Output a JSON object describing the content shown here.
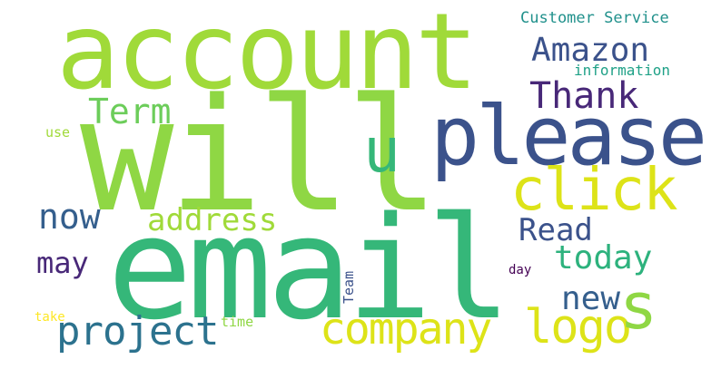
{
  "palette": {
    "yellow_green": "#a0da39",
    "lime": "#8fd744",
    "green": "#6ccd5a",
    "teal_green": "#35b779",
    "sea_green": "#2db27d",
    "teal": "#1fa187",
    "cyan_teal": "#21918c",
    "slate": "#3b528b",
    "steel": "#355f8d",
    "dark_steel": "#2c728e",
    "purple": "#482878",
    "dark_purple": "#440154",
    "yellow": "#dde318",
    "gold": "#fde725"
  },
  "words": [
    {
      "text": "will"
    },
    {
      "text": "email"
    },
    {
      "text": "account"
    },
    {
      "text": "please"
    },
    {
      "text": "click"
    },
    {
      "text": "company"
    },
    {
      "text": "logo"
    },
    {
      "text": "project"
    },
    {
      "text": "s"
    },
    {
      "text": "u"
    },
    {
      "text": "Amazon"
    },
    {
      "text": "Thank"
    },
    {
      "text": "Term"
    },
    {
      "text": "now"
    },
    {
      "text": "address"
    },
    {
      "text": "Read"
    },
    {
      "text": "today"
    },
    {
      "text": "new"
    },
    {
      "text": "may"
    },
    {
      "text": "Customer Service"
    },
    {
      "text": "information"
    },
    {
      "text": "use"
    },
    {
      "text": "Team"
    },
    {
      "text": "day"
    },
    {
      "text": "time"
    },
    {
      "text": "take"
    }
  ]
}
